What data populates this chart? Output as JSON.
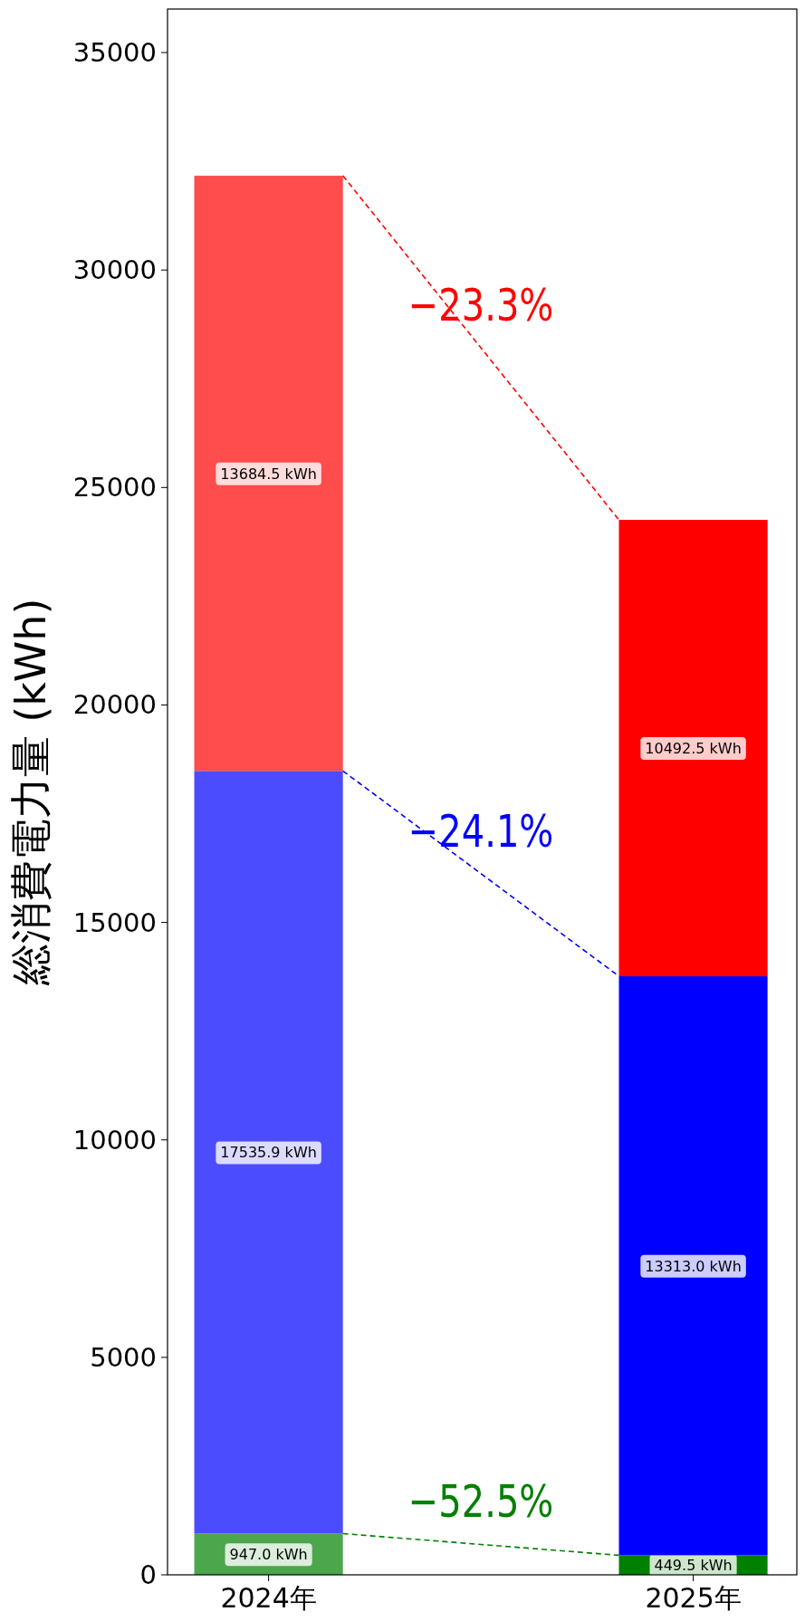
{
  "chart_data": {
    "type": "bar",
    "stacked": true,
    "ylabel": "総消費電力量 (kWh)",
    "categories": [
      "2024年",
      "2025年"
    ],
    "ylim": [
      0,
      36000
    ],
    "yticks": [
      0,
      5000,
      10000,
      15000,
      20000,
      25000,
      30000,
      35000
    ],
    "grid": false,
    "series": [
      {
        "colors": [
          "#4ca64c",
          "#008000"
        ],
        "values": [
          947.0,
          449.5
        ],
        "value_labels": [
          "947.0 kWh",
          "449.5 kWh"
        ]
      },
      {
        "colors": [
          "#4c4cff",
          "#0000ff"
        ],
        "values": [
          17535.9,
          13313.0
        ],
        "value_labels": [
          "17535.9 kWh",
          "13313.0 kWh"
        ]
      },
      {
        "colors": [
          "#ff4c4c",
          "#ff0000"
        ],
        "values": [
          13684.5,
          10492.5
        ],
        "value_labels": [
          "13684.5 kWh",
          "10492.5 kWh"
        ]
      }
    ],
    "annotations": [
      "−52.5%",
      "−24.1%",
      "−23.3%"
    ]
  }
}
